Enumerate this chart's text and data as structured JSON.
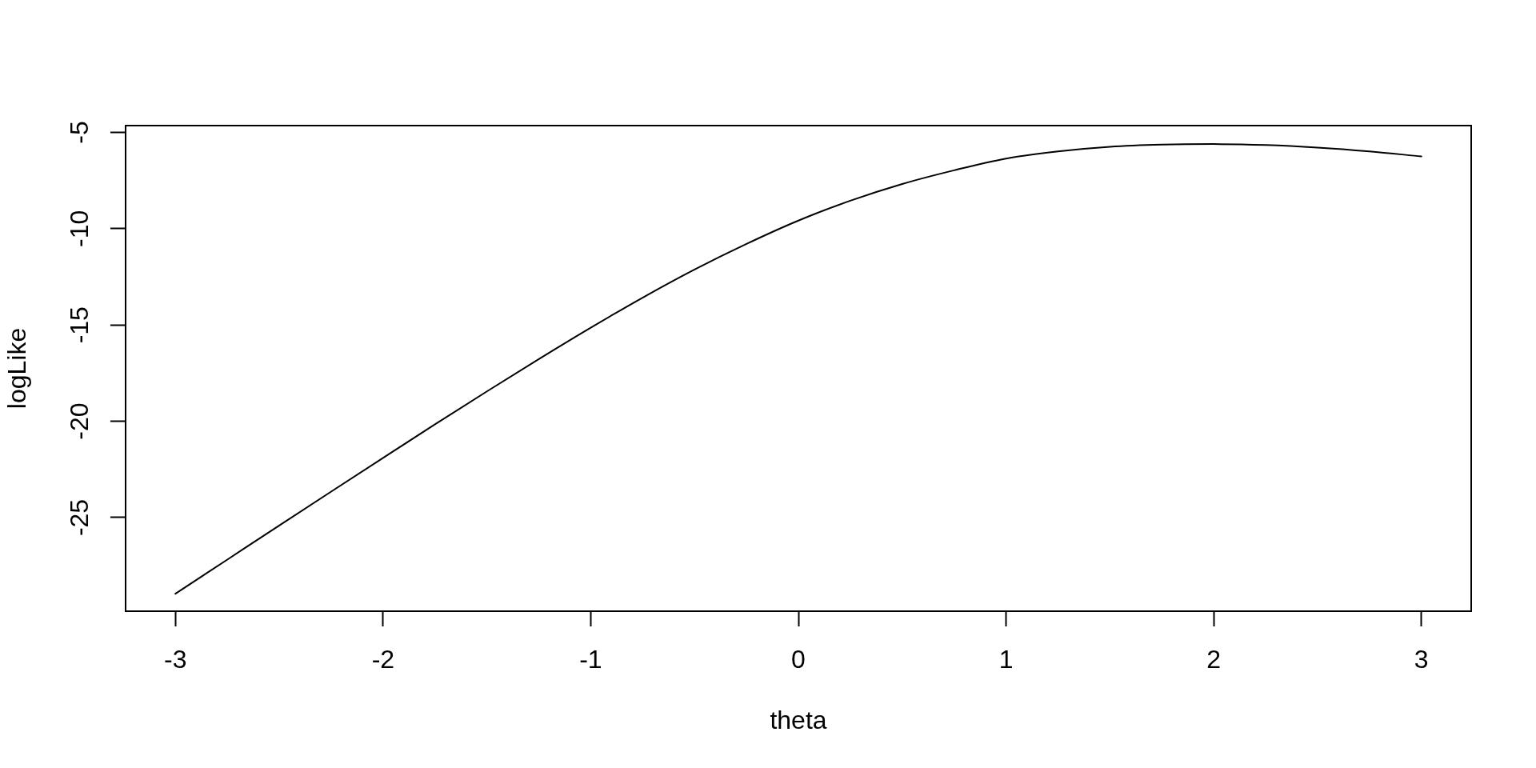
{
  "chart_data": {
    "type": "line",
    "xlabel": "theta",
    "ylabel": "logLike",
    "x": [
      -3,
      -2.75,
      -2.5,
      -2.25,
      -2,
      -1.75,
      -1.5,
      -1.25,
      -1,
      -0.75,
      -0.5,
      -0.25,
      0,
      0.25,
      0.5,
      0.75,
      1,
      1.25,
      1.5,
      1.75,
      2,
      2.25,
      2.5,
      2.75,
      3
    ],
    "series": [
      {
        "color": "#000000",
        "values": [
          -28.95,
          -27.18,
          -25.41,
          -23.65,
          -21.9,
          -20.16,
          -18.45,
          -16.77,
          -15.14,
          -13.58,
          -12.12,
          -10.79,
          -9.58,
          -8.55,
          -7.68,
          -6.97,
          -6.36,
          -5.99,
          -5.75,
          -5.64,
          -5.61,
          -5.66,
          -5.79,
          -5.99,
          -6.25
        ]
      }
    ],
    "xlim": [
      -3.24,
      3.24
    ],
    "xticks": [
      -3,
      -2,
      -1,
      0,
      1,
      2,
      3
    ],
    "ylim": [
      -29.86,
      -4.65
    ],
    "yticks": [
      -25,
      -20,
      -15,
      -10,
      -5
    ]
  }
}
